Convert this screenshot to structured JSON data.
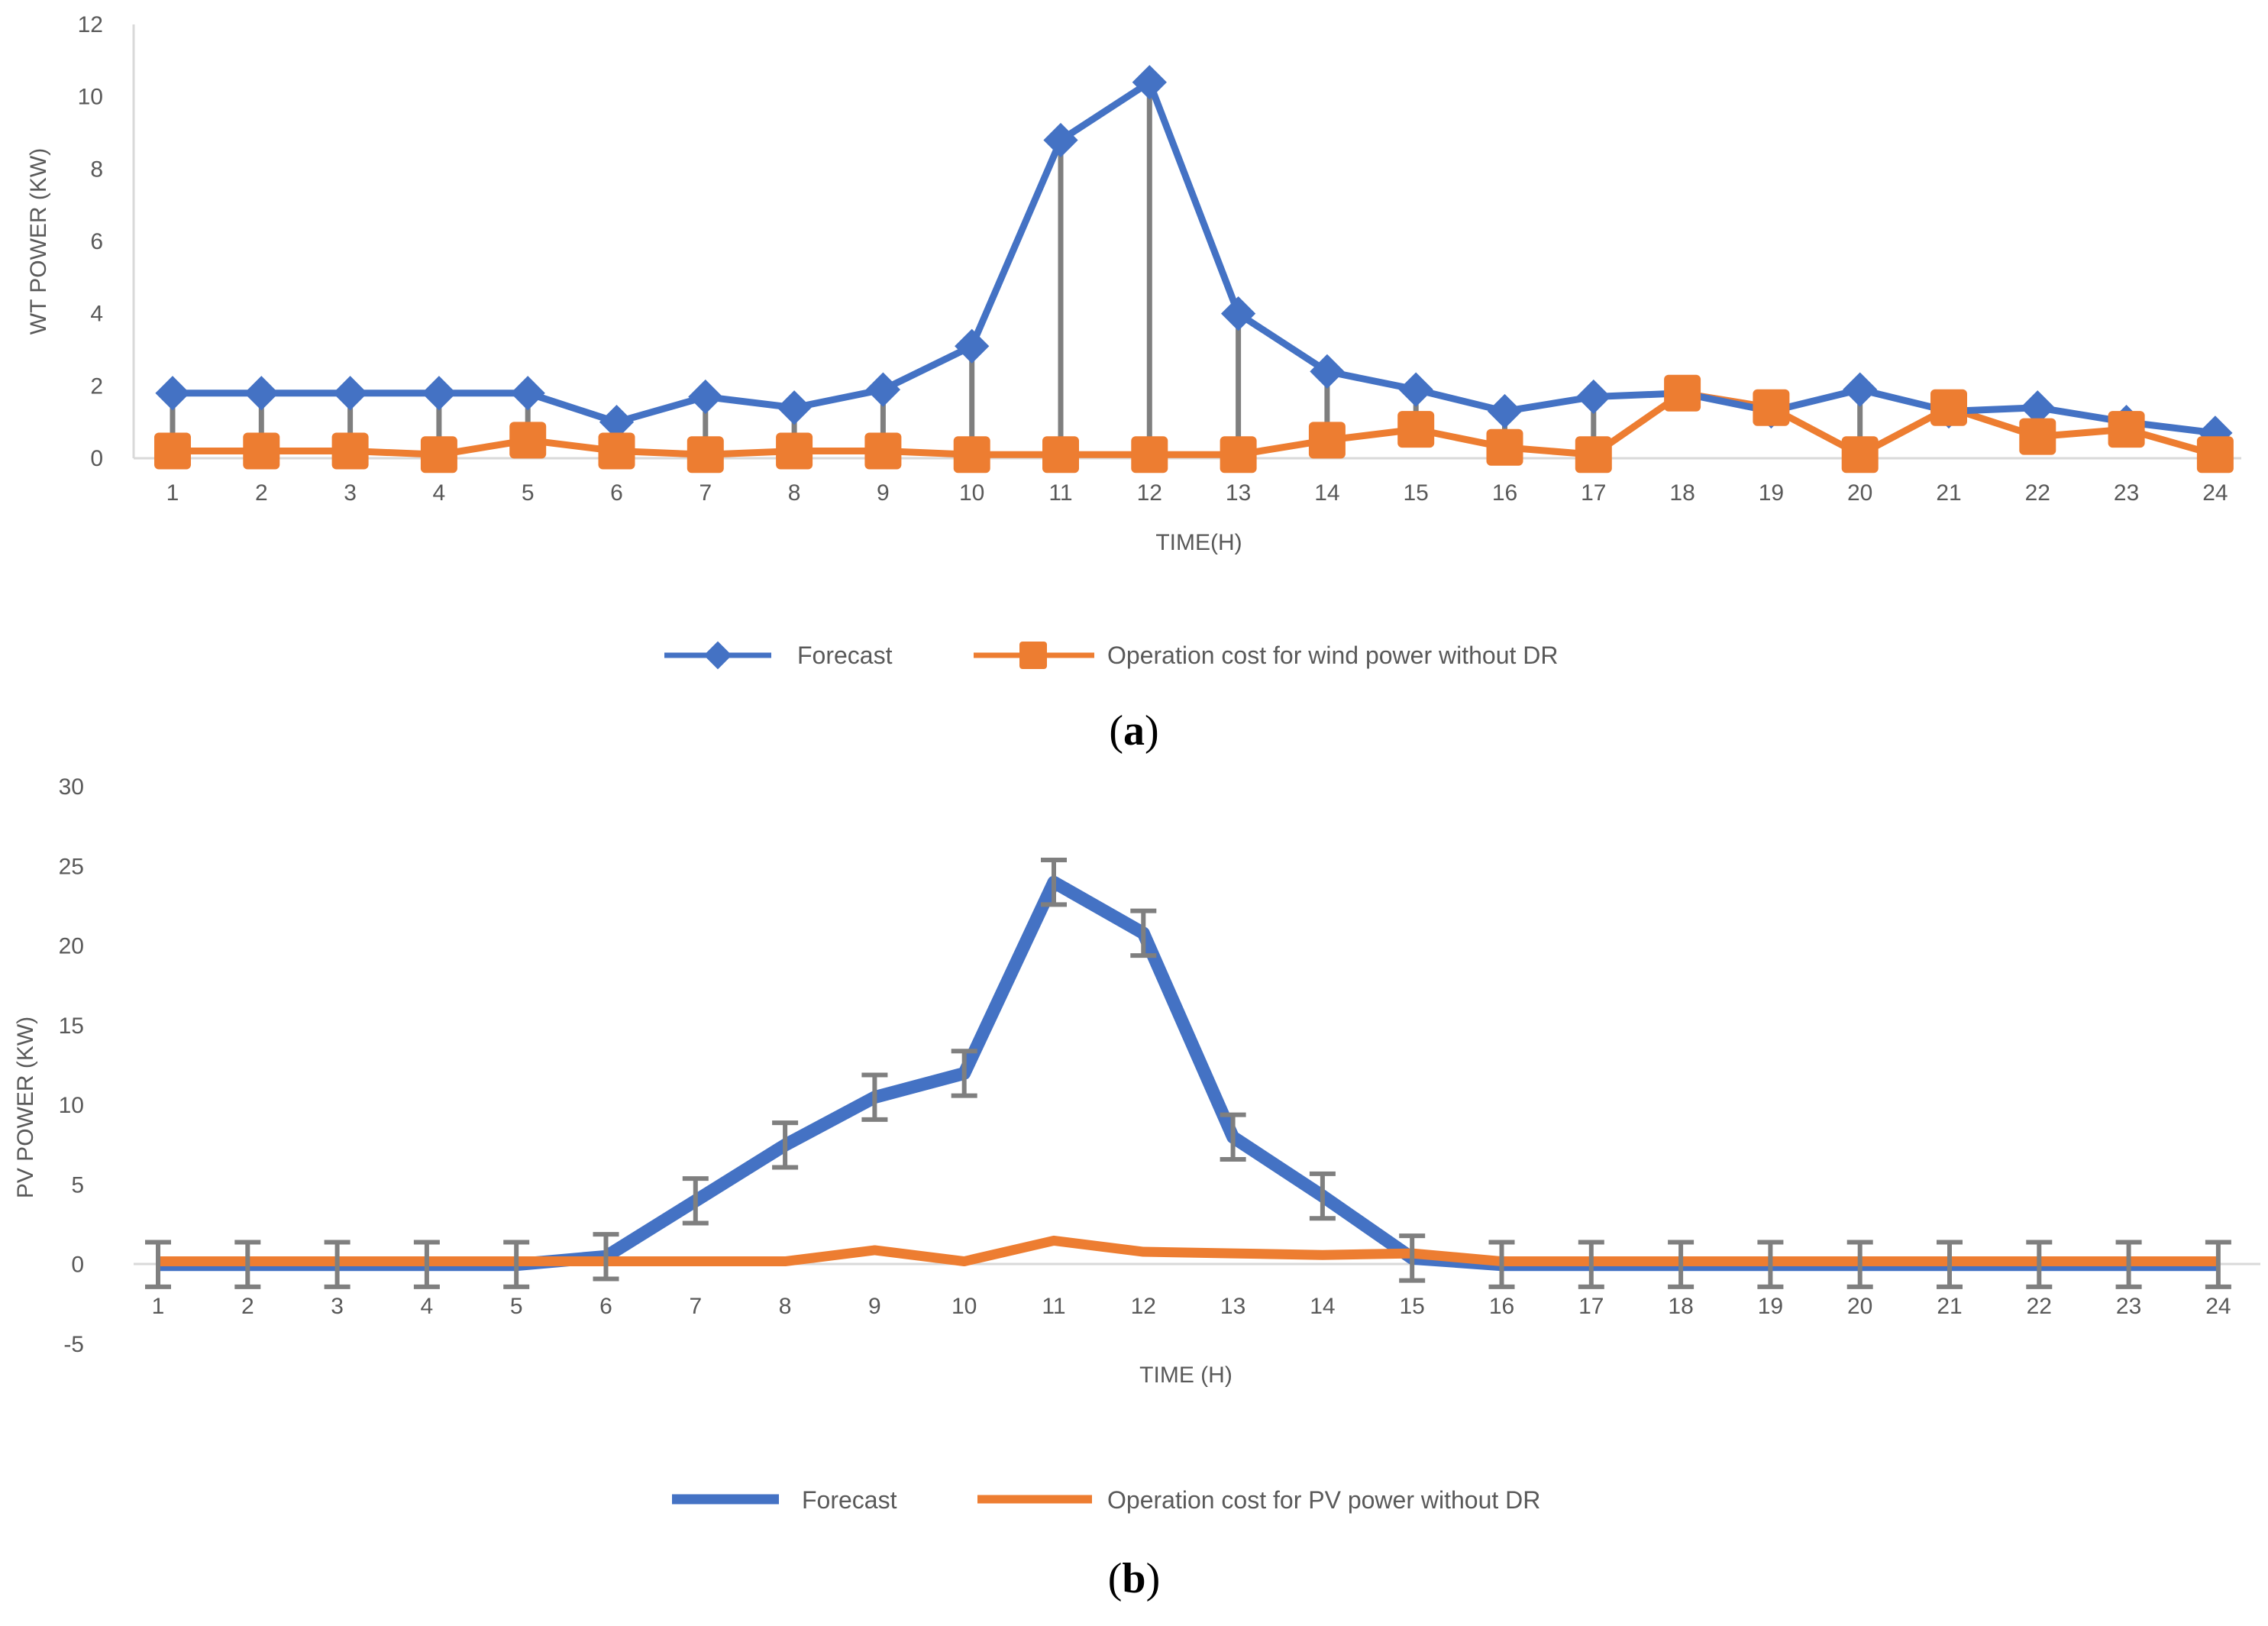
{
  "chart_data": [
    {
      "type": "line",
      "panel_label": "a",
      "title": "",
      "xlabel": "TIME(H)",
      "ylabel": "WT POWER (KW)",
      "ylim": [
        0,
        12
      ],
      "yticks": [
        0,
        2,
        4,
        6,
        8,
        10,
        12
      ],
      "categories": [
        "1",
        "2",
        "3",
        "4",
        "5",
        "6",
        "7",
        "8",
        "9",
        "10",
        "11",
        "12",
        "13",
        "14",
        "15",
        "16",
        "17",
        "18",
        "19",
        "20",
        "21",
        "22",
        "23",
        "24"
      ],
      "series": [
        {
          "name": "Forecast",
          "color": "#4472C4",
          "marker": "diamond",
          "values": [
            1.8,
            1.8,
            1.8,
            1.8,
            1.8,
            1.0,
            1.7,
            1.4,
            1.9,
            3.1,
            8.8,
            10.4,
            4.0,
            2.4,
            1.9,
            1.3,
            1.7,
            1.8,
            1.3,
            1.9,
            1.3,
            1.4,
            1.0,
            0.7
          ]
        },
        {
          "name": "Operation cost for wind power without DR",
          "color": "#ED7D31",
          "marker": "square",
          "values": [
            0.2,
            0.2,
            0.2,
            0.1,
            0.5,
            0.2,
            0.1,
            0.2,
            0.2,
            0.1,
            0.1,
            0.1,
            0.1,
            0.5,
            0.8,
            0.3,
            0.1,
            1.8,
            1.4,
            0.1,
            1.4,
            0.6,
            0.8,
            0.1
          ]
        }
      ],
      "droplines": true,
      "grid": false,
      "legend": "bottom"
    },
    {
      "type": "line",
      "panel_label": "b",
      "title": "",
      "xlabel": "TIME (H)",
      "ylabel": "PV POWER (KW)",
      "ylim": [
        -5,
        30
      ],
      "yticks": [
        -5,
        0,
        5,
        10,
        15,
        20,
        25,
        30
      ],
      "categories": [
        "1",
        "2",
        "3",
        "4",
        "5",
        "6",
        "7",
        "8",
        "9",
        "10",
        "11",
        "12",
        "13",
        "14",
        "15",
        "16",
        "17",
        "18",
        "19",
        "20",
        "21",
        "22",
        "23",
        "24"
      ],
      "series": [
        {
          "name": "Forecast",
          "color": "#4472C4",
          "marker": "none",
          "values": [
            0,
            0,
            0,
            0,
            0,
            0.5,
            4.0,
            7.5,
            10.5,
            12.0,
            24.0,
            20.8,
            8.0,
            4.3,
            0.4,
            0,
            0,
            0,
            0,
            0,
            0,
            0,
            0,
            0
          ],
          "error": 1.4
        },
        {
          "name": "Operation cost for PV power without DR",
          "color": "#ED7D31",
          "marker": "none",
          "values": [
            0.2,
            0.2,
            0.2,
            0.2,
            0.2,
            0.2,
            0.2,
            0.2,
            0.9,
            0.2,
            1.5,
            0.8,
            0.7,
            0.6,
            0.7,
            0.2,
            0.2,
            0.2,
            0.2,
            0.2,
            0.2,
            0.2,
            0.2,
            0.2
          ]
        }
      ],
      "grid": false,
      "legend": "bottom"
    }
  ]
}
